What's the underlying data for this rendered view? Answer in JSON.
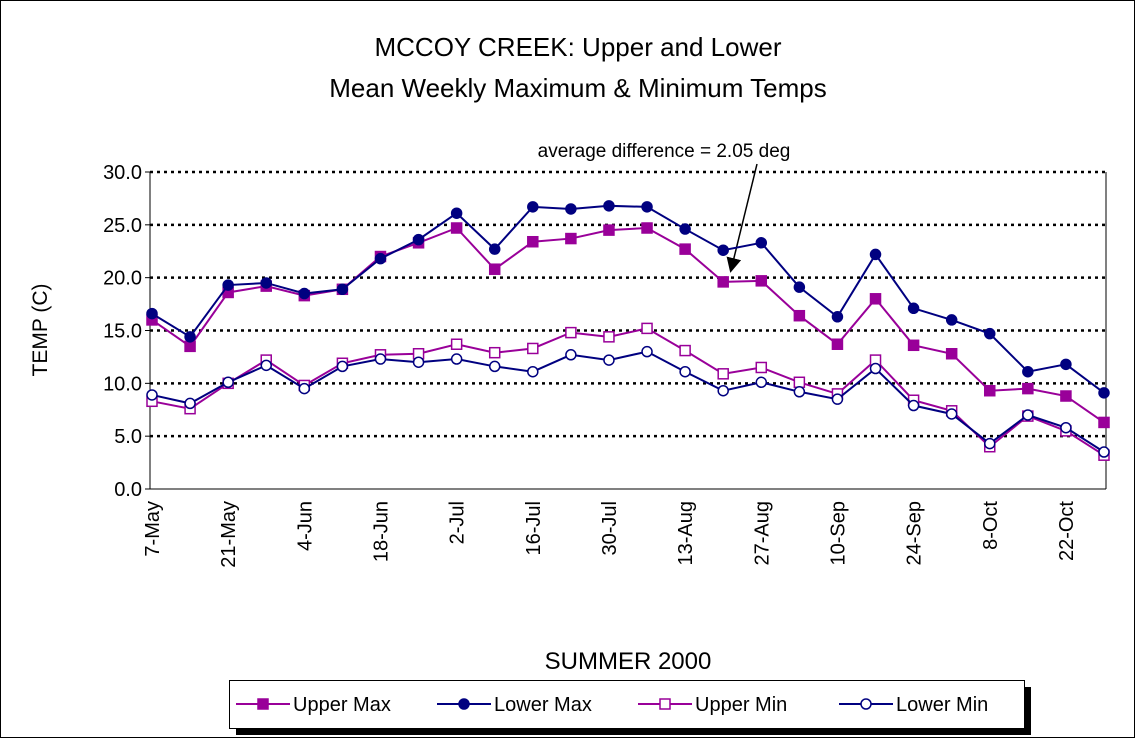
{
  "chart_data": {
    "type": "line",
    "title": [
      "MCCOY CREEK:  Upper and Lower",
      "Mean Weekly Maximum & Minimum Temps"
    ],
    "x_label": "SUMMER 2000",
    "y_label": "TEMP (C)",
    "annotation": "average difference = 2.05 deg",
    "categories": [
      "7-May",
      null,
      "21-May",
      null,
      "4-Jun",
      null,
      "18-Jun",
      null,
      "2-Jul",
      null,
      "16-Jul",
      null,
      "30-Jul",
      null,
      "13-Aug",
      null,
      "27-Aug",
      null,
      "10-Sep",
      null,
      "24-Sep",
      null,
      "8-Oct",
      null,
      "22-Oct",
      null
    ],
    "series": [
      {
        "name": "Upper Max",
        "color": "#990099",
        "marker": "square",
        "filled": true,
        "values": [
          16.0,
          13.5,
          18.6,
          19.2,
          18.3,
          18.9,
          22.0,
          23.3,
          24.7,
          20.8,
          23.4,
          23.7,
          24.5,
          24.7,
          22.7,
          19.6,
          19.7,
          16.4,
          13.7,
          18.0,
          13.6,
          12.8,
          9.3,
          9.5,
          8.8,
          6.3
        ]
      },
      {
        "name": "Lower Max",
        "color": "#000080",
        "marker": "circle",
        "filled": true,
        "values": [
          16.6,
          14.4,
          19.3,
          19.5,
          18.5,
          18.9,
          21.8,
          23.6,
          26.1,
          22.7,
          26.7,
          26.5,
          26.8,
          26.7,
          24.6,
          22.6,
          23.3,
          19.1,
          16.3,
          22.2,
          17.1,
          16.0,
          14.7,
          11.1,
          11.8,
          9.1
        ]
      },
      {
        "name": "Upper Min",
        "color": "#990099",
        "marker": "square",
        "filled": false,
        "values": [
          8.3,
          7.6,
          10.0,
          12.2,
          9.8,
          11.9,
          12.7,
          12.8,
          13.7,
          12.9,
          13.3,
          14.8,
          14.4,
          15.2,
          13.1,
          10.9,
          11.5,
          10.1,
          9.0,
          12.2,
          8.4,
          7.4,
          4.0,
          6.9,
          5.5,
          3.2
        ]
      },
      {
        "name": "Lower Min",
        "color": "#000080",
        "marker": "circle",
        "filled": false,
        "values": [
          8.9,
          8.1,
          10.1,
          11.7,
          9.5,
          11.6,
          12.3,
          12.0,
          12.3,
          11.6,
          11.1,
          12.7,
          12.2,
          13.0,
          11.1,
          9.3,
          10.1,
          9.2,
          8.5,
          11.4,
          7.9,
          7.1,
          4.3,
          7.0,
          5.8,
          3.5
        ]
      }
    ],
    "ylim": [
      0,
      30
    ],
    "yticks": [
      {
        "value": 0,
        "label": "0.0"
      },
      {
        "value": 5,
        "label": "5.0"
      },
      {
        "value": 10,
        "label": "10.0"
      },
      {
        "value": 15,
        "label": "15.0"
      },
      {
        "value": 20,
        "label": "20.0"
      },
      {
        "value": 25,
        "label": "25.0"
      },
      {
        "value": 30,
        "label": "30.0"
      }
    ],
    "grid": true,
    "legend": "bottom"
  }
}
